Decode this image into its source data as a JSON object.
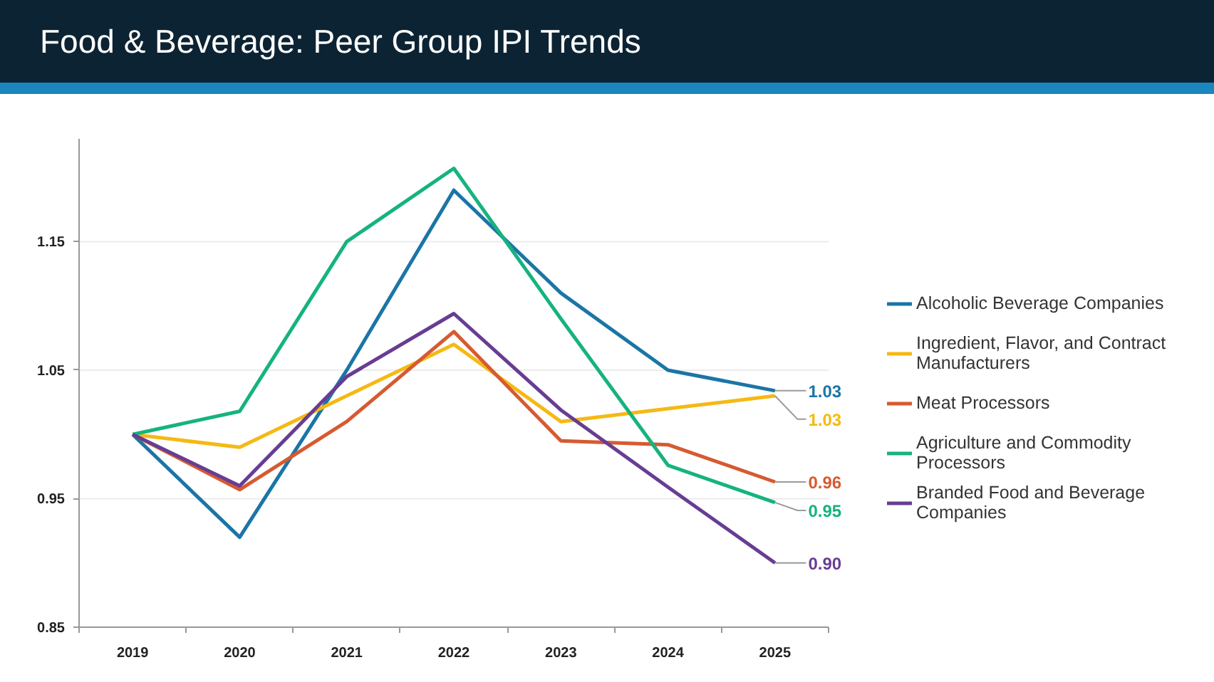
{
  "chart_data": {
    "type": "line",
    "title": "Food & Beverage: Peer Group IPI Trends",
    "categories": [
      "2019",
      "2020",
      "2021",
      "2022",
      "2023",
      "2024",
      "2025"
    ],
    "series": [
      {
        "name": "Alcoholic Beverage Companies",
        "color": "#1b75a6",
        "values": [
          1.0,
          0.92,
          1.05,
          1.19,
          1.11,
          1.05,
          1.034
        ],
        "value_labels": [
          null,
          null,
          null,
          null,
          null,
          null,
          "1.03"
        ]
      },
      {
        "name": "Ingredient, Flavor, and Contract Manufacturers",
        "color": "#f5b914",
        "values": [
          1.0,
          0.99,
          1.03,
          1.07,
          1.01,
          1.02,
          1.03
        ],
        "value_labels": [
          null,
          null,
          null,
          null,
          null,
          null,
          "1.03"
        ]
      },
      {
        "name": "Meat Processors",
        "color": "#d65a31",
        "values": [
          1.0,
          0.957,
          1.01,
          1.08,
          0.995,
          0.992,
          0.963
        ],
        "value_labels": [
          null,
          null,
          null,
          null,
          null,
          null,
          "0.96"
        ]
      },
      {
        "name": "Agriculture and Commodity Processors",
        "color": "#16b37e",
        "values": [
          1.0,
          1.018,
          1.15,
          1.207,
          1.09,
          0.976,
          0.947
        ],
        "value_labels": [
          null,
          null,
          null,
          null,
          null,
          null,
          "0.95"
        ]
      },
      {
        "name": "Branded Food and Beverage Companies",
        "color": "#673d93",
        "values": [
          1.0,
          0.96,
          1.045,
          1.094,
          1.019,
          0.959,
          0.9
        ],
        "value_labels": [
          null,
          null,
          null,
          null,
          null,
          null,
          "0.90"
        ]
      }
    ],
    "ylim": [
      0.85,
      1.23
    ],
    "yticks": [
      0.85,
      0.95,
      1.05,
      1.15
    ],
    "grid": "y",
    "legend": "right"
  }
}
